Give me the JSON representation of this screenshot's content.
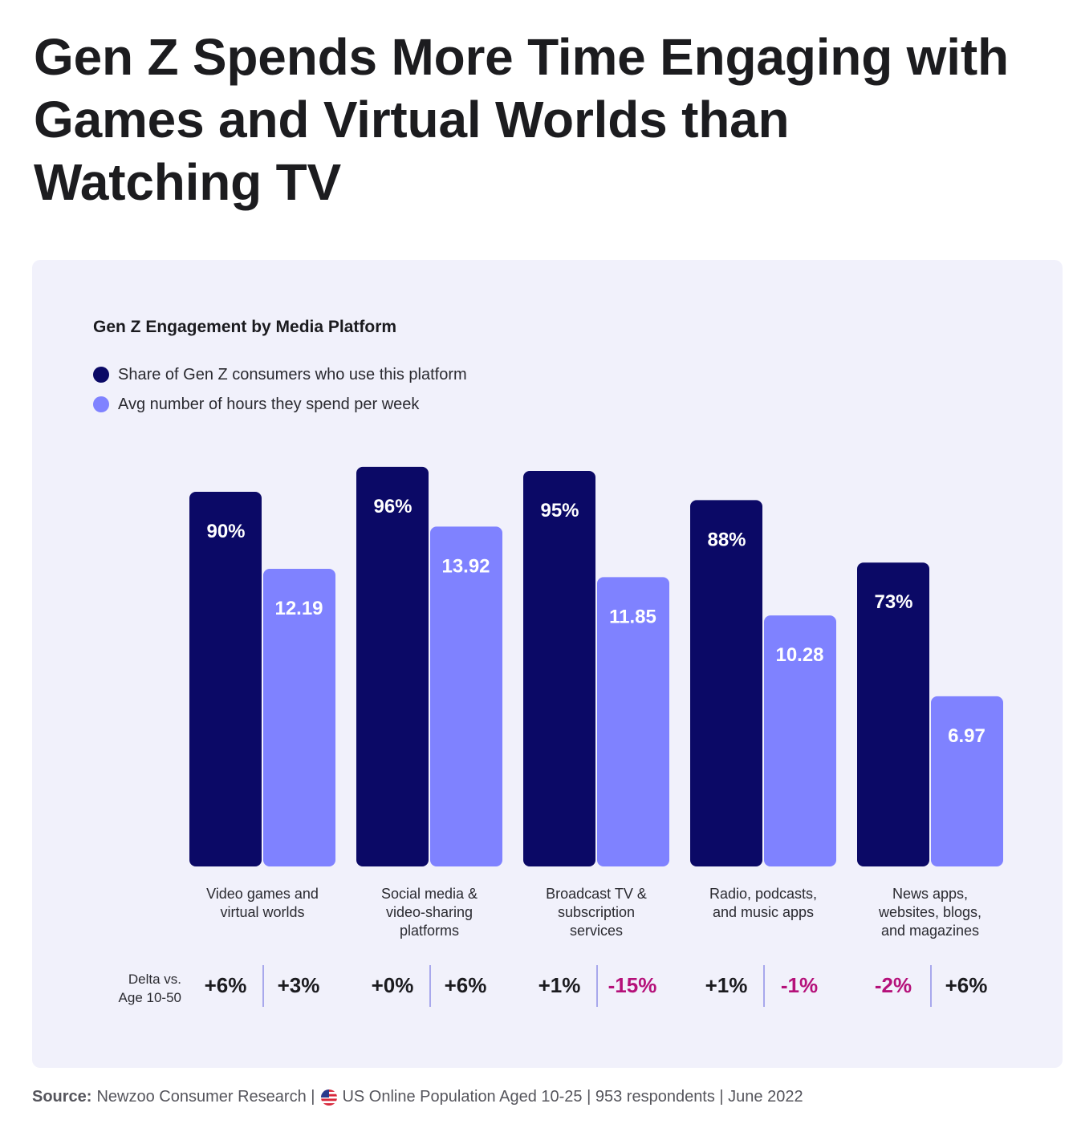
{
  "title": "Gen Z Spends More Time Engaging with Games and Virtual Worlds than Watching TV",
  "colors": {
    "share": "#0b0966",
    "hours": "#7f82ff",
    "panel": "#f1f1fb",
    "positive_delta": "#1b1b1f",
    "negative_delta": "#b5117a"
  },
  "chart_data": {
    "type": "bar",
    "title": "Gen Z Engagement by Media Platform",
    "categories": [
      "Video games and virtual worlds",
      "Social media & video-sharing platforms",
      "Broadcast TV & subscription services",
      "Radio, podcasts, and music apps",
      "News apps, websites, blogs, and magazines"
    ],
    "category_lines": [
      [
        "Video games and",
        "virtual worlds"
      ],
      [
        "Social media &",
        "video-sharing",
        "platforms"
      ],
      [
        "Broadcast TV &",
        "subscription",
        "services"
      ],
      [
        "Radio, podcasts,",
        "and music apps"
      ],
      [
        "News apps,",
        "websites, blogs,",
        "and magazines"
      ]
    ],
    "series": [
      {
        "name": "Share of Gen Z consumers who use this platform",
        "values": [
          90,
          96,
          95,
          88,
          73
        ],
        "labels": [
          "90%",
          "96%",
          "95%",
          "88%",
          "73%"
        ]
      },
      {
        "name": "Avg number of hours they spend per week",
        "values": [
          12.19,
          13.92,
          11.85,
          10.28,
          6.97
        ],
        "labels": [
          "12.19",
          "13.92",
          "11.85",
          "10.28",
          "6.97"
        ]
      }
    ],
    "legend_position": "top-left",
    "grid": false,
    "delta": {
      "caption_lines": [
        "Delta vs.",
        "Age 10-50"
      ],
      "share": [
        "+6%",
        "+0%",
        "+1%",
        "+1%",
        "-2%"
      ],
      "hours": [
        "+3%",
        "+6%",
        "-15%",
        "-1%",
        "+6%"
      ]
    }
  },
  "source": {
    "label": "Source:",
    "text_before_flag": "Newzoo Consumer Research |",
    "flag_icon": "us-flag-icon",
    "text_after_flag": "US Online Population Aged 10-25 | 953 respondents | June 2022"
  }
}
